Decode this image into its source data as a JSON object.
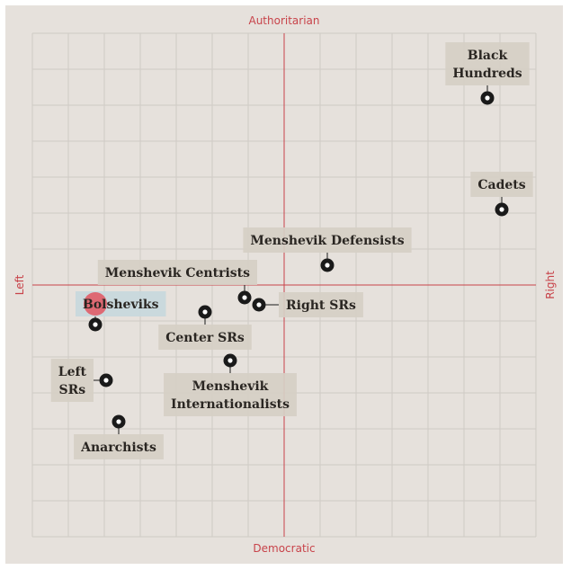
{
  "colors": {
    "background": "#e6e1dc",
    "grid": "#cfcac5",
    "axis": "#c8434a",
    "label_box": "#d6cfc4",
    "highlight_box": "#c8d8dc",
    "marker": "#1a1a1a",
    "highlight_dot": "#e25560"
  },
  "chart_data": {
    "type": "scatter",
    "title": "",
    "xlim": [
      -7,
      7
    ],
    "ylim": [
      -7,
      7
    ],
    "grid": true,
    "axis_labels": {
      "top": "Authoritarian",
      "bottom": "Democratic",
      "left": "Left",
      "right": "Right"
    },
    "points": [
      {
        "name": "Black Hundreds",
        "lines": [
          "Black",
          "Hundreds"
        ],
        "x": 5.65,
        "y": 5.2,
        "label_side": "above"
      },
      {
        "name": "Cadets",
        "lines": [
          "Cadets"
        ],
        "x": 6.05,
        "y": 2.1,
        "label_side": "above"
      },
      {
        "name": "Menshevik Defensists",
        "lines": [
          "Menshevik Defensists"
        ],
        "x": 1.2,
        "y": 0.55,
        "label_side": "above"
      },
      {
        "name": "Menshevik Centrists",
        "lines": [
          "Menshevik Centrists"
        ],
        "x": -1.1,
        "y": -0.35,
        "label_side": "above-left"
      },
      {
        "name": "Right SRs",
        "lines": [
          "Right SRs"
        ],
        "x": -0.7,
        "y": -0.55,
        "label_side": "right"
      },
      {
        "name": "Center SRs",
        "lines": [
          "Center SRs"
        ],
        "x": -2.2,
        "y": -0.75,
        "label_side": "below"
      },
      {
        "name": "Bolsheviks",
        "lines": [
          "Bolsheviks"
        ],
        "x": -5.25,
        "y": -1.1,
        "label_side": "above",
        "highlight": true
      },
      {
        "name": "Menshevik Internationalists",
        "lines": [
          "Menshevik",
          "Internationalists"
        ],
        "x": -1.5,
        "y": -2.1,
        "label_side": "below"
      },
      {
        "name": "Left SRs",
        "lines": [
          "Left",
          "SRs"
        ],
        "x": -4.95,
        "y": -2.65,
        "label_side": "left"
      },
      {
        "name": "Anarchists",
        "lines": [
          "Anarchists"
        ],
        "x": -4.6,
        "y": -3.8,
        "label_side": "below"
      }
    ]
  }
}
